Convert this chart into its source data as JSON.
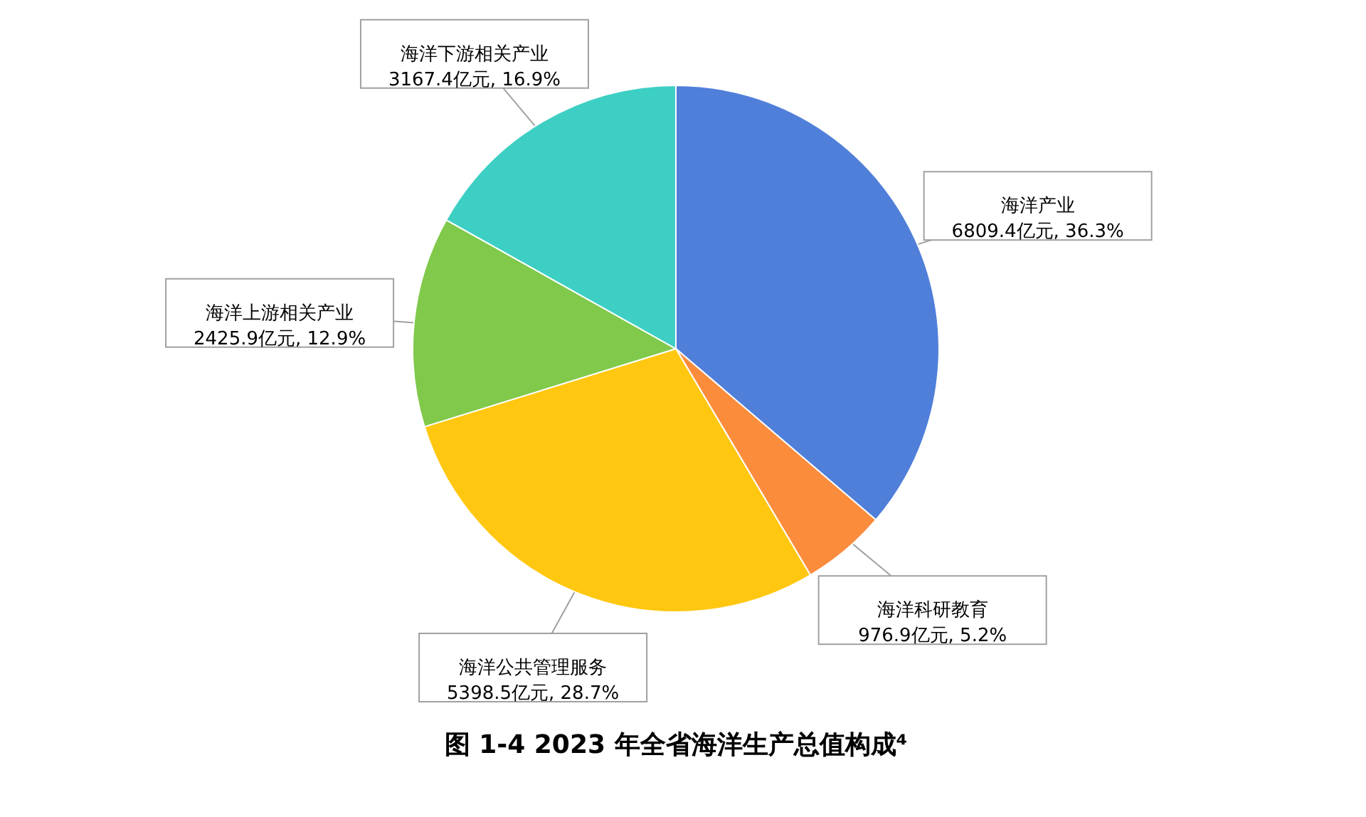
{
  "chart_data": {
    "type": "pie",
    "title": "图 1-4 2023 年全省海洋生产总值构成⁴",
    "categories": [
      "海洋产业",
      "海洋科研教育",
      "海洋公共管理服务",
      "海洋上游相关产业",
      "海洋下游相关产业"
    ],
    "values": [
      6809.4,
      976.9,
      5398.5,
      2425.9,
      3167.4
    ],
    "colors": [
      "#507fda",
      "#fb8c3c",
      "#ffc710",
      "#80c94b",
      "#3dcfc3"
    ],
    "value_labels": [
      "6809.4亿元, 36.3%",
      "976.9亿元, 5.2%",
      "5398.5亿元, 28.7%",
      "2425.9亿元, 12.9%",
      "3167.4亿元, 16.9%"
    ]
  }
}
